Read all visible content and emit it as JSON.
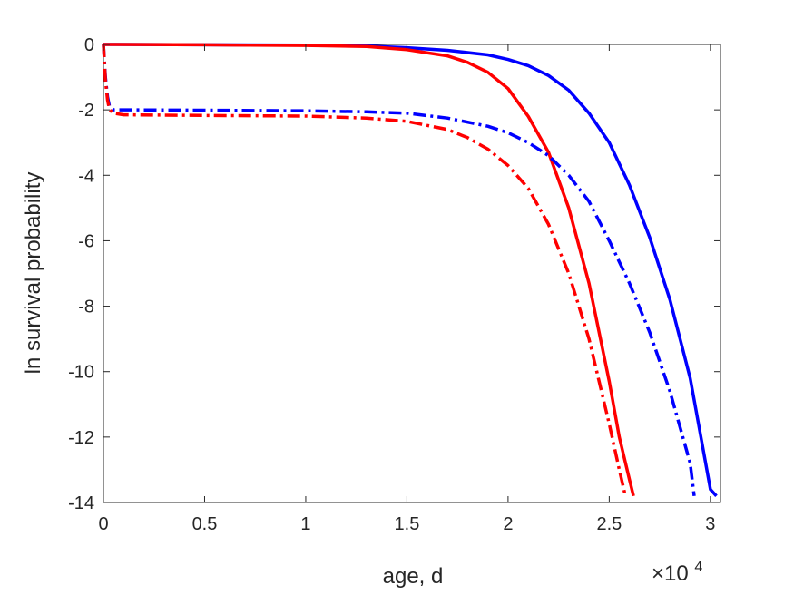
{
  "chart_data": {
    "type": "line",
    "xlabel": "age, d",
    "ylabel": "ln survival probability",
    "x_exponent_label": "×10",
    "x_exponent_power": "4",
    "xlim": [
      0,
      30500
    ],
    "ylim": [
      -14,
      0
    ],
    "x_ticks": [
      0,
      5000,
      10000,
      15000,
      20000,
      25000,
      30000
    ],
    "x_tick_labels": [
      "0",
      "0.5",
      "1",
      "1.5",
      "2",
      "2.5",
      "3"
    ],
    "y_ticks": [
      0,
      -2,
      -4,
      -6,
      -8,
      -10,
      -12,
      -14
    ],
    "y_tick_labels": [
      "0",
      "-2",
      "-4",
      "-6",
      "-8",
      "-10",
      "-12",
      "-14"
    ],
    "grid": false,
    "colors": {
      "blue": "#0000ff",
      "red": "#ff0000"
    },
    "series": [
      {
        "color": "#0000ff",
        "style": "solid",
        "x": [
          0,
          5000,
          10000,
          13000,
          15000,
          17000,
          19000,
          20000,
          21000,
          22000,
          23000,
          24000,
          25000,
          26000,
          27000,
          28000,
          29000,
          30000,
          30300
        ],
        "y": [
          0,
          -0.01,
          -0.02,
          -0.05,
          -0.1,
          -0.18,
          -0.32,
          -0.46,
          -0.65,
          -0.95,
          -1.4,
          -2.1,
          -3.0,
          -4.3,
          -5.9,
          -7.8,
          -10.2,
          -13.6,
          -13.8
        ]
      },
      {
        "color": "#ff0000",
        "style": "solid",
        "x": [
          0,
          5000,
          10000,
          13000,
          15000,
          17000,
          18000,
          19000,
          20000,
          21000,
          22000,
          23000,
          24000,
          25000,
          25500,
          26000,
          26200
        ],
        "y": [
          0,
          -0.01,
          -0.03,
          -0.06,
          -0.16,
          -0.35,
          -0.55,
          -0.85,
          -1.35,
          -2.2,
          -3.3,
          -5.0,
          -7.3,
          -10.3,
          -12.0,
          -13.3,
          -13.8
        ]
      },
      {
        "color": "#0000ff",
        "style": "dashdot",
        "x": [
          0,
          100,
          200,
          300,
          500,
          1000,
          5000,
          10000,
          13000,
          15000,
          17000,
          19000,
          20000,
          21000,
          22000,
          23000,
          24000,
          25000,
          26000,
          27000,
          28000,
          29000,
          29200
        ],
        "y": [
          0,
          -1.0,
          -1.6,
          -1.9,
          -2.0,
          -2.0,
          -2.01,
          -2.03,
          -2.06,
          -2.1,
          -2.25,
          -2.5,
          -2.7,
          -3.0,
          -3.4,
          -4.0,
          -4.8,
          -6.0,
          -7.3,
          -8.8,
          -10.6,
          -12.8,
          -13.8
        ]
      },
      {
        "color": "#ff0000",
        "style": "dashdot",
        "x": [
          0,
          100,
          200,
          300,
          500,
          1000,
          5000,
          10000,
          13000,
          15000,
          17000,
          18000,
          19000,
          20000,
          21000,
          22000,
          23000,
          24000,
          25000,
          25500,
          25800
        ],
        "y": [
          0,
          -1.1,
          -1.7,
          -2.0,
          -2.1,
          -2.15,
          -2.17,
          -2.19,
          -2.25,
          -2.35,
          -2.6,
          -2.85,
          -3.2,
          -3.7,
          -4.4,
          -5.5,
          -7.0,
          -9.0,
          -11.6,
          -13.0,
          -13.8
        ]
      }
    ]
  }
}
